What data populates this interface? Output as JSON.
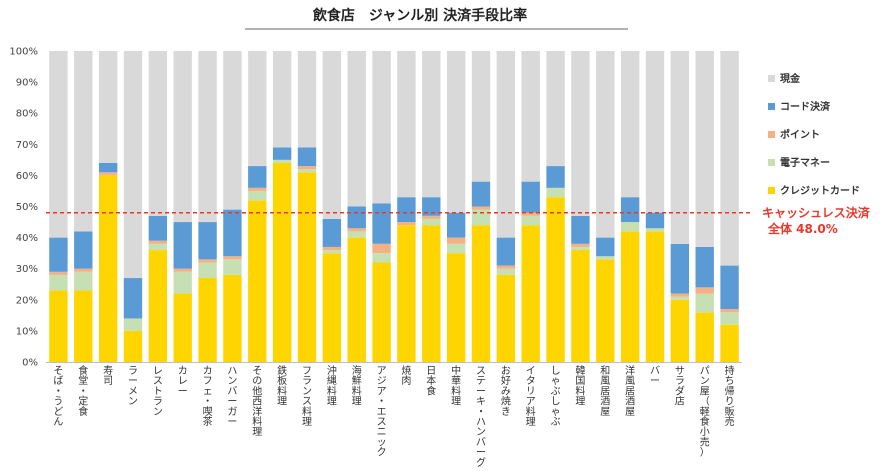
{
  "chart_data": {
    "type": "bar",
    "stacked": true,
    "title": "飲食店　ジャンル別 決済手段比率",
    "xlabel": "",
    "ylabel": "",
    "ylim": [
      0,
      100
    ],
    "y_ticks": [
      "0%",
      "10%",
      "20%",
      "30%",
      "40%",
      "50%",
      "60%",
      "70%",
      "80%",
      "90%",
      "100%"
    ],
    "grid": false,
    "legend_position": "right",
    "categories": [
      "そば・うどん",
      "食堂・定食",
      "寿司",
      "ラーメン",
      "レストラン",
      "カレー",
      "カフェ・喫茶",
      "ハンバーガー",
      "その他西洋料理",
      "鉄板料理",
      "フランス料理",
      "沖縄料理",
      "海鮮料理",
      "アジア・エスニック",
      "焼肉",
      "日本食",
      "中華料理",
      "ステーキ・ハンバーグ",
      "お好み焼き",
      "イタリア料理",
      "しゃぶしゃぶ",
      "韓国料理",
      "和風居酒屋",
      "洋風居酒屋",
      "バー",
      "サラダ店",
      "パン屋（軽食小売）",
      "持ち帰り販売"
    ],
    "series": [
      {
        "name": "クレジットカード",
        "color": "#ffd500",
        "values": [
          23,
          23,
          60,
          10,
          36,
          22,
          27,
          28,
          52,
          64,
          61,
          35,
          40,
          32,
          44,
          44,
          35,
          44,
          28,
          44,
          53,
          36,
          33,
          42,
          42,
          20,
          16,
          12
        ]
      },
      {
        "name": "電子マネー",
        "color": "#c6e0b4",
        "values": [
          5,
          6,
          0,
          4,
          2,
          7,
          5,
          5,
          3,
          1,
          1,
          1,
          2,
          3,
          0,
          2,
          3,
          5,
          2,
          3,
          3,
          1,
          1,
          3,
          1,
          1,
          6,
          4
        ]
      },
      {
        "name": "ポイント",
        "color": "#f4b183",
        "values": [
          1,
          1,
          1,
          0,
          1,
          1,
          1,
          1,
          1,
          0,
          1,
          1,
          1,
          3,
          1,
          1,
          2,
          1,
          1,
          1,
          0,
          1,
          0,
          0,
          0,
          1,
          2,
          1
        ]
      },
      {
        "name": "コード決済",
        "color": "#5b9bd5",
        "values": [
          11,
          12,
          3,
          13,
          8,
          15,
          12,
          15,
          7,
          4,
          6,
          9,
          7,
          13,
          8,
          6,
          8,
          8,
          9,
          10,
          7,
          9,
          6,
          8,
          5,
          16,
          13,
          14
        ]
      },
      {
        "name": "現金",
        "color": "#d9d9d9",
        "values": [
          60,
          58,
          36,
          73,
          53,
          55,
          55,
          51,
          37,
          31,
          31,
          54,
          50,
          49,
          47,
          47,
          52,
          42,
          60,
          42,
          37,
          53,
          60,
          47,
          52,
          62,
          63,
          69
        ]
      }
    ],
    "legend_order": [
      "現金",
      "コード決済",
      "ポイント",
      "電子マネー",
      "クレジットカード"
    ],
    "reference_line": {
      "value": 48.0,
      "label_line1": "キャッシュレス決済",
      "label_line2": "全体 48.0%",
      "color": "#e8382c"
    }
  }
}
